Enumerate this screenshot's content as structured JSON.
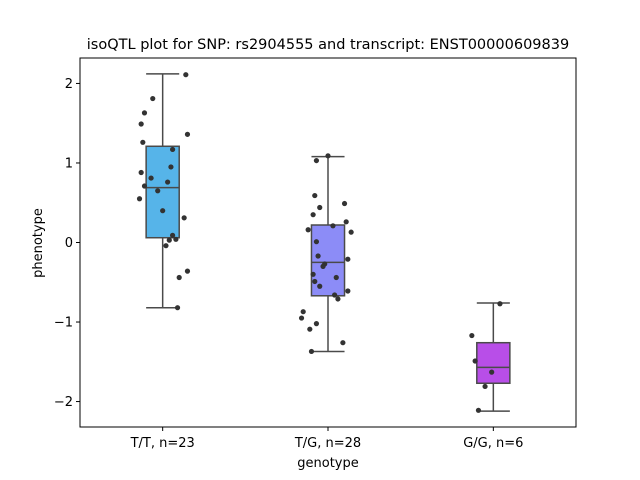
{
  "chart_data": {
    "type": "box",
    "title": "isoQTL plot for SNP: rs2904555 and transcript: ENST00000609839",
    "xlabel": "genotype",
    "ylabel": "phenotype",
    "ylim": [
      -2.32,
      2.32
    ],
    "yticks": [
      -2,
      -1,
      0,
      1,
      2
    ],
    "ytick_labels": [
      "−2",
      "−1",
      "0",
      "1",
      "2"
    ],
    "grid": false,
    "categories": [
      "T/T, n=23",
      "T/G, n=28",
      "G/G, n=6"
    ],
    "colors": [
      "#56b4e9",
      "#8c8cf7",
      "#b84ee8"
    ],
    "boxes": [
      {
        "whisker_low": -0.82,
        "q1": 0.06,
        "median": 0.69,
        "q3": 1.21,
        "whisker_high": 2.12
      },
      {
        "whisker_low": -1.37,
        "q1": -0.67,
        "median": -0.25,
        "q3": 0.22,
        "whisker_high": 1.08
      },
      {
        "whisker_low": -2.12,
        "q1": -1.77,
        "median": -1.57,
        "q3": -1.26,
        "whisker_high": -0.76
      }
    ],
    "points": [
      [
        {
          "dx": 0.14,
          "y": 2.11
        },
        {
          "dx": -0.06,
          "y": 1.81
        },
        {
          "dx": -0.11,
          "y": 1.63
        },
        {
          "dx": -0.13,
          "y": 1.49
        },
        {
          "dx": 0.15,
          "y": 1.36
        },
        {
          "dx": -0.12,
          "y": 1.26
        },
        {
          "dx": 0.06,
          "y": 1.17
        },
        {
          "dx": 0.05,
          "y": 0.95
        },
        {
          "dx": -0.13,
          "y": 0.88
        },
        {
          "dx": -0.07,
          "y": 0.81
        },
        {
          "dx": 0.03,
          "y": 0.76
        },
        {
          "dx": -0.11,
          "y": 0.71
        },
        {
          "dx": -0.03,
          "y": 0.65
        },
        {
          "dx": -0.14,
          "y": 0.55
        },
        {
          "dx": 0.0,
          "y": 0.4
        },
        {
          "dx": 0.13,
          "y": 0.31
        },
        {
          "dx": 0.06,
          "y": 0.09
        },
        {
          "dx": 0.08,
          "y": 0.04
        },
        {
          "dx": 0.02,
          "y": -0.04
        },
        {
          "dx": 0.15,
          "y": -0.36
        },
        {
          "dx": 0.1,
          "y": -0.44
        },
        {
          "dx": 0.09,
          "y": -0.82
        },
        {
          "dx": 0.04,
          "y": 0.03
        }
      ],
      [
        {
          "dx": 0.0,
          "y": 1.09
        },
        {
          "dx": -0.07,
          "y": 1.03
        },
        {
          "dx": -0.08,
          "y": 0.59
        },
        {
          "dx": 0.1,
          "y": 0.49
        },
        {
          "dx": -0.05,
          "y": 0.44
        },
        {
          "dx": -0.09,
          "y": 0.35
        },
        {
          "dx": 0.11,
          "y": 0.26
        },
        {
          "dx": 0.03,
          "y": 0.21
        },
        {
          "dx": -0.12,
          "y": 0.16
        },
        {
          "dx": 0.14,
          "y": 0.13
        },
        {
          "dx": -0.07,
          "y": 0.01
        },
        {
          "dx": -0.06,
          "y": -0.17
        },
        {
          "dx": 0.12,
          "y": -0.21
        },
        {
          "dx": -0.02,
          "y": -0.27
        },
        {
          "dx": -0.03,
          "y": -0.3
        },
        {
          "dx": -0.09,
          "y": -0.4
        },
        {
          "dx": 0.05,
          "y": -0.44
        },
        {
          "dx": -0.08,
          "y": -0.49
        },
        {
          "dx": -0.05,
          "y": -0.55
        },
        {
          "dx": 0.12,
          "y": -0.61
        },
        {
          "dx": 0.04,
          "y": -0.66
        },
        {
          "dx": 0.06,
          "y": -0.71
        },
        {
          "dx": -0.15,
          "y": -0.87
        },
        {
          "dx": -0.16,
          "y": -0.95
        },
        {
          "dx": -0.07,
          "y": -1.02
        },
        {
          "dx": -0.11,
          "y": -1.09
        },
        {
          "dx": 0.09,
          "y": -1.26
        },
        {
          "dx": -0.1,
          "y": -1.37
        }
      ],
      [
        {
          "dx": 0.04,
          "y": -0.77
        },
        {
          "dx": -0.13,
          "y": -1.17
        },
        {
          "dx": -0.11,
          "y": -1.49
        },
        {
          "dx": -0.01,
          "y": -1.63
        },
        {
          "dx": -0.05,
          "y": -1.81
        },
        {
          "dx": -0.09,
          "y": -2.11
        }
      ]
    ]
  }
}
